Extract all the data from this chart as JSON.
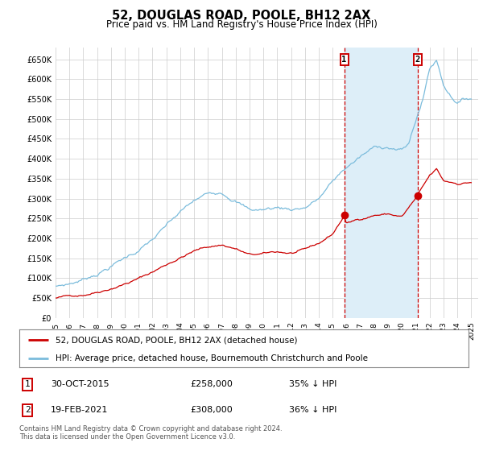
{
  "title": "52, DOUGLAS ROAD, POOLE, BH12 2AX",
  "subtitle": "Price paid vs. HM Land Registry's House Price Index (HPI)",
  "xlim_start": 1995.0,
  "xlim_end": 2025.5,
  "ylim_min": 0,
  "ylim_max": 680000,
  "yticks": [
    0,
    50000,
    100000,
    150000,
    200000,
    250000,
    300000,
    350000,
    400000,
    450000,
    500000,
    550000,
    600000,
    650000
  ],
  "ytick_labels": [
    "£0",
    "£50K",
    "£100K",
    "£150K",
    "£200K",
    "£250K",
    "£300K",
    "£350K",
    "£400K",
    "£450K",
    "£500K",
    "£550K",
    "£600K",
    "£650K"
  ],
  "xtick_years": [
    1995,
    1996,
    1997,
    1998,
    1999,
    2000,
    2001,
    2002,
    2003,
    2004,
    2005,
    2006,
    2007,
    2008,
    2009,
    2010,
    2011,
    2012,
    2013,
    2014,
    2015,
    2016,
    2017,
    2018,
    2019,
    2020,
    2021,
    2022,
    2023,
    2024,
    2025
  ],
  "hpi_color": "#7bbcdc",
  "price_color": "#cc0000",
  "transaction1_date": 2015.83,
  "transaction1_price": 258000,
  "transaction1_label": "1",
  "transaction2_date": 2021.12,
  "transaction2_price": 308000,
  "transaction2_label": "2",
  "vline_color": "#cc0000",
  "shade_color": "#ddeef8",
  "legend_line1": "52, DOUGLAS ROAD, POOLE, BH12 2AX (detached house)",
  "legend_line2": "HPI: Average price, detached house, Bournemouth Christchurch and Poole",
  "footnote": "Contains HM Land Registry data © Crown copyright and database right 2024.\nThis data is licensed under the Open Government Licence v3.0.",
  "background_color": "#ffffff",
  "plot_bg_color": "#ffffff",
  "grid_color": "#cccccc"
}
